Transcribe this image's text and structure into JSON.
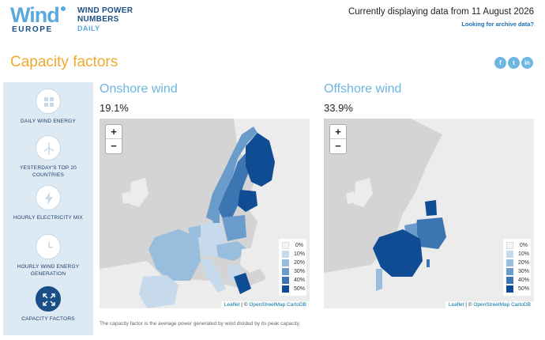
{
  "header": {
    "logo_wind": "Wind",
    "logo_europe": "EUROPE",
    "logo_title_line1": "WIND POWER",
    "logo_title_line2": "NUMBERS",
    "logo_subtitle": "DAILY",
    "currently": "Currently displaying data from 11 August 2026",
    "archive_link": "Looking for archive data?"
  },
  "page_title": "Capacity factors",
  "social": {
    "facebook": "f",
    "twitter": "t",
    "linkedin": "in"
  },
  "sidebar": {
    "items": [
      {
        "label": "DAILY WIND ENERGY",
        "icon": "grid-icon"
      },
      {
        "label": "YESTERDAY'S TOP 20 COUNTRIES",
        "icon": "turbine-icon"
      },
      {
        "label": "HOURLY ELECTRICITY MIX",
        "icon": "lightning-icon"
      },
      {
        "label": "HOURLY WIND ENERGY GENERATION",
        "icon": "clock-icon"
      },
      {
        "label": "CAPACITY FACTORS",
        "icon": "expand-icon"
      }
    ]
  },
  "onshore": {
    "title": "Onshore wind",
    "value": "19.1%"
  },
  "offshore": {
    "title": "Offshore wind",
    "value": "33.9%"
  },
  "map": {
    "zoom_in": "+",
    "zoom_out": "−",
    "legend": [
      "0%",
      "10%",
      "20%",
      "30%",
      "40%",
      "50%"
    ],
    "legend_colors": [
      "#f3f6f9",
      "#c6daec",
      "#99bddc",
      "#6a9ccb",
      "#3d75b3",
      "#0f4c94"
    ],
    "attribution_leaflet": "Leaflet",
    "attribution_sep": " | © ",
    "attribution_osm": "OpenStreetMap",
    "attribution_carto": "CartoDB"
  },
  "footnote": "The capacity factor is the average power generated by wind divided by its peak capacity."
}
